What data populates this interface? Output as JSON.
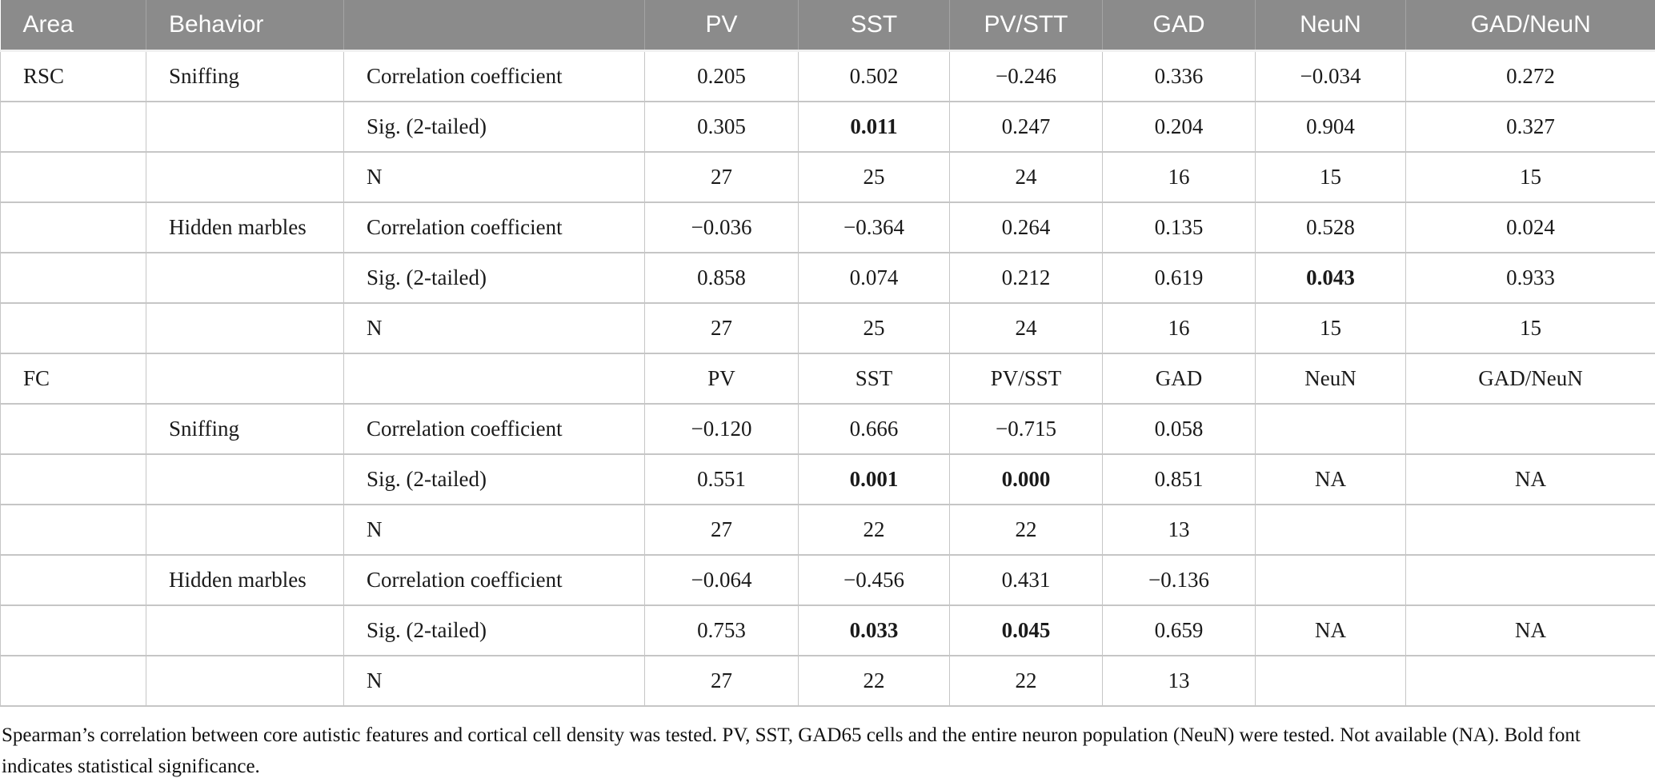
{
  "colors": {
    "header_bg": "#8b8b8b",
    "header_text": "#ffffff",
    "border": "#c6c6c6",
    "text": "#1a1a1a"
  },
  "table": {
    "header": {
      "cells": [
        "Area",
        "Behavior",
        "",
        "PV",
        "SST",
        "PV/STT",
        "GAD",
        "NeuN",
        "GAD/NeuN"
      ]
    },
    "rows": [
      {
        "cells": [
          "RSC",
          "Sniffing",
          "Correlation coefficient",
          "0.205",
          "0.502",
          "−0.246",
          "0.336",
          "−0.034",
          "0.272"
        ],
        "bold": []
      },
      {
        "cells": [
          "",
          "",
          "Sig. (2-tailed)",
          "0.305",
          "0.011",
          "0.247",
          "0.204",
          "0.904",
          "0.327"
        ],
        "bold": [
          4
        ]
      },
      {
        "cells": [
          "",
          "",
          "N",
          "27",
          "25",
          "24",
          "16",
          "15",
          "15"
        ],
        "bold": []
      },
      {
        "cells": [
          "",
          "Hidden marbles",
          "Correlation coefficient",
          "−0.036",
          "−0.364",
          "0.264",
          "0.135",
          "0.528",
          "0.024"
        ],
        "bold": []
      },
      {
        "cells": [
          "",
          "",
          "Sig. (2-tailed)",
          "0.858",
          "0.074",
          "0.212",
          "0.619",
          "0.043",
          "0.933"
        ],
        "bold": [
          7
        ]
      },
      {
        "cells": [
          "",
          "",
          "N",
          "27",
          "25",
          "24",
          "16",
          "15",
          "15"
        ],
        "bold": []
      },
      {
        "cells": [
          "FC",
          "",
          "",
          "PV",
          "SST",
          "PV/SST",
          "GAD",
          "NeuN",
          "GAD/NeuN"
        ],
        "bold": []
      },
      {
        "cells": [
          "",
          "Sniffing",
          "Correlation coefficient",
          "−0.120",
          "0.666",
          "−0.715",
          "0.058",
          "",
          ""
        ],
        "bold": []
      },
      {
        "cells": [
          "",
          "",
          "Sig. (2-tailed)",
          "0.551",
          "0.001",
          "0.000",
          "0.851",
          "NA",
          "NA"
        ],
        "bold": [
          4,
          5
        ]
      },
      {
        "cells": [
          "",
          "",
          "N",
          "27",
          "22",
          "22",
          "13",
          "",
          ""
        ],
        "bold": []
      },
      {
        "cells": [
          "",
          "Hidden marbles",
          "Correlation coefficient",
          "−0.064",
          "−0.456",
          "0.431",
          "−0.136",
          "",
          ""
        ],
        "bold": []
      },
      {
        "cells": [
          "",
          "",
          "Sig. (2-tailed)",
          "0.753",
          "0.033",
          "0.045",
          "0.659",
          "NA",
          "NA"
        ],
        "bold": [
          4,
          5
        ]
      },
      {
        "cells": [
          "",
          "",
          "N",
          "27",
          "22",
          "22",
          "13",
          "",
          ""
        ],
        "bold": []
      }
    ],
    "footnote": "Spearman’s correlation between core autistic features and cortical cell density was tested. PV, SST, GAD65 cells and the entire neuron population (NeuN) were tested. Not available (NA). Bold font indicates statistical significance."
  }
}
